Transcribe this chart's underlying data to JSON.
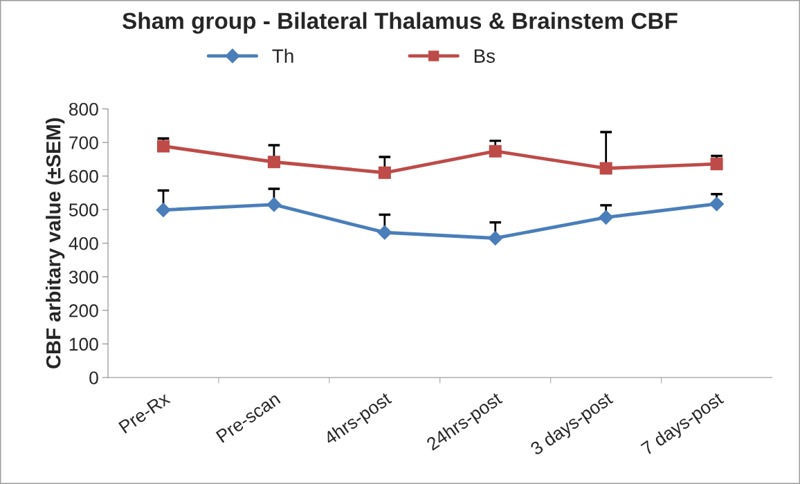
{
  "chart_data": {
    "type": "line",
    "title": "Sham group - Bilateral Thalamus & Brainstem CBF",
    "ylabel": "CBF arbitary value (±SEM)",
    "categories": [
      "Pre-Rx",
      "Pre-scan",
      "4hrs-post",
      "24hrs-post",
      "3 days-post",
      "7 days-post"
    ],
    "series": [
      {
        "name": "Th",
        "color": "#4a7ebb",
        "marker": "diamond",
        "values": [
          499,
          515,
          432,
          415,
          477,
          517
        ],
        "errors": [
          [
            499,
            557
          ],
          [
            515,
            562
          ],
          [
            432,
            485
          ],
          [
            415,
            462
          ],
          [
            477,
            513
          ],
          [
            517,
            546
          ]
        ]
      },
      {
        "name": "Bs",
        "color": "#be4b48",
        "marker": "square",
        "values": [
          689,
          642,
          610,
          674,
          623,
          636
        ],
        "errors": [
          [
            689,
            712
          ],
          [
            642,
            692
          ],
          [
            610,
            657
          ],
          [
            674,
            705
          ],
          [
            623,
            731
          ],
          [
            636,
            660
          ]
        ]
      }
    ],
    "ylim": [
      0,
      800
    ],
    "yticks": [
      0,
      100,
      200,
      300,
      400,
      500,
      600,
      700,
      800
    ],
    "grid": false,
    "legend": "top",
    "line_style": "solid"
  }
}
